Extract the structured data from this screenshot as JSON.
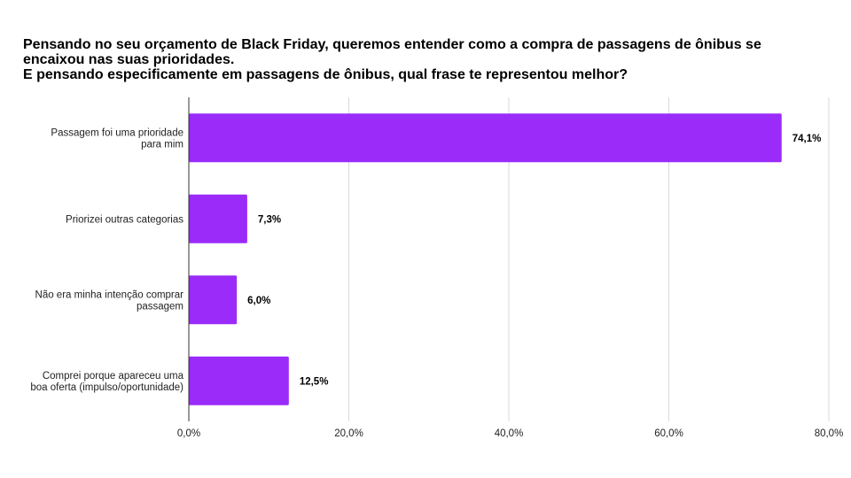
{
  "chart_data": {
    "type": "bar",
    "orientation": "horizontal",
    "title_lines": [
      "Pensando no seu orçamento de Black Friday, queremos entender como a compra de passagens de ônibus se",
      "encaixou nas suas prioridades.",
      "E pensando especificamente em passagens de ônibus, qual frase te representou melhor?"
    ],
    "categories": [
      [
        "Passagem foi uma prioridade",
        "para mim"
      ],
      [
        "Priorizei outras categorias"
      ],
      [
        "Não era minha intenção comprar",
        "passagem"
      ],
      [
        "Comprei porque apareceu uma",
        "boa oferta (impulso/oportunidade)"
      ]
    ],
    "values": [
      74.1,
      7.3,
      6.0,
      12.5
    ],
    "value_labels": [
      "74,1%",
      "7,3%",
      "6,0%",
      "12,5%"
    ],
    "xlim": [
      0,
      80
    ],
    "x_ticks": [
      0,
      20,
      40,
      60,
      80
    ],
    "x_tick_labels": [
      "0,0%",
      "20,0%",
      "40,0%",
      "60,0%",
      "80,0%"
    ],
    "grid": true,
    "bar_color": "#9a2bf9",
    "xlabel": "",
    "ylabel": ""
  }
}
